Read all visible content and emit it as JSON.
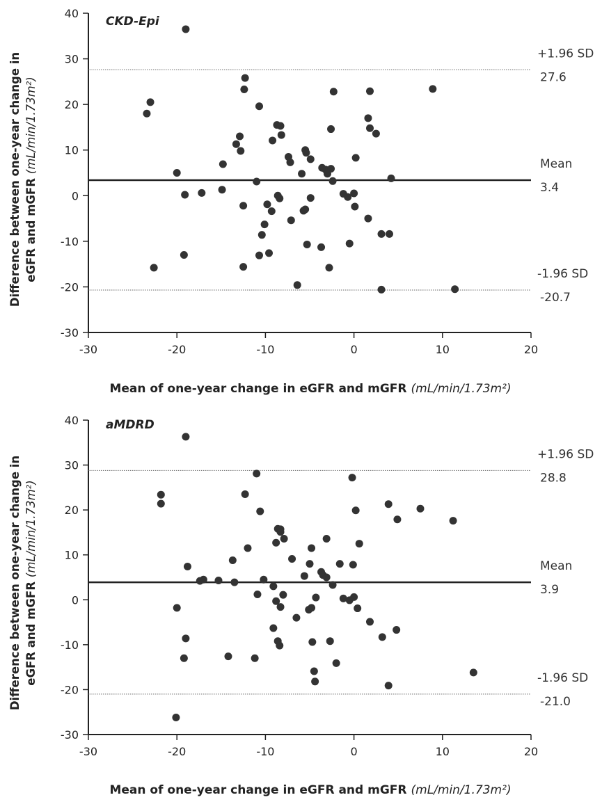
{
  "chart_data": [
    {
      "type": "scatter",
      "panel_label": "CKD-Epi",
      "xlabel": "Mean of one-year change in eGFR and mGFR",
      "xlabel_unit": "(mL/min/1.73m²)",
      "ylabel_line1": "Difference between one-year change in",
      "ylabel_line2": "eGFR and mGFR",
      "ylabel_unit": "(mL/min/1.73m²)",
      "xlim": [
        -30,
        20
      ],
      "ylim": [
        -30,
        40
      ],
      "xticks": [
        "-30",
        "-20",
        "-10",
        "0",
        "10",
        "20"
      ],
      "yticks": [
        "-30",
        "-20",
        "-10",
        "0",
        "10",
        "20",
        "30",
        "40"
      ],
      "grid": false,
      "reference_lines": [
        {
          "name": "+1.96 SD",
          "value": 27.6,
          "label": "+1.96 SD",
          "value_label": "27.6",
          "style": "dotted"
        },
        {
          "name": "Mean",
          "value": 3.4,
          "label": "Mean",
          "value_label": "3.4",
          "style": "solid"
        },
        {
          "name": "-1.96 SD",
          "value": -20.7,
          "label": "-1.96 SD",
          "value_label": "-20.7",
          "style": "dotted"
        }
      ],
      "points": [
        [
          -19,
          36.5
        ],
        [
          -12.3,
          25.8
        ],
        [
          -12.4,
          23.3
        ],
        [
          -23,
          20.5
        ],
        [
          -23.4,
          18
        ],
        [
          -10.7,
          19.6
        ],
        [
          -8.7,
          15.5
        ],
        [
          -8.3,
          15.3
        ],
        [
          -8.2,
          13.3
        ],
        [
          -13.3,
          11.3
        ],
        [
          -12.9,
          13
        ],
        [
          -12.8,
          9.8
        ],
        [
          -9.2,
          12.1
        ],
        [
          -5.5,
          10
        ],
        [
          -5.4,
          9.4
        ],
        [
          -4.9,
          8
        ],
        [
          -7.4,
          8.5
        ],
        [
          -7.2,
          7.3
        ],
        [
          -2.6,
          14.6
        ],
        [
          -2.3,
          22.8
        ],
        [
          1.6,
          17
        ],
        [
          1.8,
          14.8
        ],
        [
          2.5,
          13.6
        ],
        [
          1.8,
          22.9
        ],
        [
          8.9,
          23.4
        ],
        [
          -14.8,
          6.9
        ],
        [
          -3.6,
          6.1
        ],
        [
          -3.2,
          5.7
        ],
        [
          -2.6,
          5.9
        ],
        [
          -3,
          4.8
        ],
        [
          -5.9,
          4.8
        ],
        [
          0.2,
          8.3
        ],
        [
          -2.4,
          3.2
        ],
        [
          4.2,
          3.8
        ],
        [
          -20,
          5
        ],
        [
          -11,
          3.1
        ],
        [
          -14.9,
          1.3
        ],
        [
          -17.2,
          0.6
        ],
        [
          -19.1,
          0.2
        ],
        [
          -8.6,
          0
        ],
        [
          -8.4,
          -0.6
        ],
        [
          -4.9,
          -0.5
        ],
        [
          -1.2,
          0.4
        ],
        [
          -0.7,
          -0.3
        ],
        [
          0,
          0.5
        ],
        [
          0.1,
          -2.4
        ],
        [
          -12.5,
          -2.2
        ],
        [
          -9.8,
          -1.9
        ],
        [
          -5.7,
          -3.3
        ],
        [
          -5.5,
          -3
        ],
        [
          -9.3,
          -3.4
        ],
        [
          -7.1,
          -5.4
        ],
        [
          -10.1,
          -6.3
        ],
        [
          1.6,
          -5
        ],
        [
          -10.4,
          -8.6
        ],
        [
          -9.6,
          -12.6
        ],
        [
          -10.7,
          -13.1
        ],
        [
          -5.3,
          -10.7
        ],
        [
          -3.7,
          -11.3
        ],
        [
          -0.5,
          -10.5
        ],
        [
          3.1,
          -8.4
        ],
        [
          4,
          -8.4
        ],
        [
          -19.2,
          -13
        ],
        [
          -22.6,
          -15.8
        ],
        [
          -12.5,
          -15.6
        ],
        [
          -2.8,
          -15.8
        ],
        [
          -6.4,
          -19.6
        ],
        [
          3.1,
          -20.6
        ],
        [
          11.4,
          -20.5
        ]
      ]
    },
    {
      "type": "scatter",
      "panel_label": "aMDRD",
      "xlabel": "Mean of one-year change in eGFR and mGFR",
      "xlabel_unit": "(mL/min/1.73m²)",
      "ylabel_line1": "Difference between one-year change in",
      "ylabel_line2": "eGFR and mGFR",
      "ylabel_unit": "(mL/min/1.73m²)",
      "xlim": [
        -30,
        20
      ],
      "ylim": [
        -30,
        40
      ],
      "xticks": [
        "-30",
        "-20",
        "-10",
        "0",
        "10",
        "20"
      ],
      "yticks": [
        "-30",
        "-20",
        "-10",
        "0",
        "10",
        "20",
        "30",
        "40"
      ],
      "grid": false,
      "reference_lines": [
        {
          "name": "+1.96 SD",
          "value": 28.8,
          "label": "+1.96 SD",
          "value_label": "28.8",
          "style": "dotted"
        },
        {
          "name": "Mean",
          "value": 3.9,
          "label": "Mean",
          "value_label": "3.9",
          "style": "solid"
        },
        {
          "name": "-1.96 SD",
          "value": -21.0,
          "label": "-1.96 SD",
          "value_label": "-21.0",
          "style": "dotted"
        }
      ],
      "points": [
        [
          -19,
          36.3
        ],
        [
          -11,
          28.1
        ],
        [
          -0.2,
          27.2
        ],
        [
          -21.8,
          23.4
        ],
        [
          -21.8,
          21.4
        ],
        [
          -12.3,
          23.5
        ],
        [
          -10.6,
          19.7
        ],
        [
          0.2,
          19.9
        ],
        [
          3.9,
          21.3
        ],
        [
          7.5,
          20.3
        ],
        [
          4.9,
          17.9
        ],
        [
          11.2,
          17.6
        ],
        [
          -8.6,
          15.8
        ],
        [
          -8.3,
          15.7
        ],
        [
          -8.3,
          15.1
        ],
        [
          -7.9,
          13.6
        ],
        [
          -8.8,
          12.7
        ],
        [
          -4.8,
          11.5
        ],
        [
          -3.1,
          13.6
        ],
        [
          0.6,
          12.5
        ],
        [
          -12,
          11.5
        ],
        [
          -13.7,
          8.8
        ],
        [
          -7,
          9.1
        ],
        [
          -18.8,
          7.4
        ],
        [
          -5,
          8
        ],
        [
          -1.6,
          8
        ],
        [
          -0.1,
          7.8
        ],
        [
          -3.7,
          6.2
        ],
        [
          -3.5,
          5.5
        ],
        [
          -5.6,
          5.3
        ],
        [
          -3.1,
          5
        ],
        [
          -17,
          4.5
        ],
        [
          -17.4,
          4.2
        ],
        [
          -15.3,
          4.3
        ],
        [
          -13.5,
          3.9
        ],
        [
          -10.2,
          4.5
        ],
        [
          -9.1,
          3
        ],
        [
          -2.4,
          3.3
        ],
        [
          -10.9,
          1.2
        ],
        [
          -8,
          1.1
        ],
        [
          -4.3,
          0.5
        ],
        [
          -1.2,
          0.3
        ],
        [
          -0.5,
          -0.1
        ],
        [
          0,
          0.6
        ],
        [
          -8.8,
          -0.3
        ],
        [
          -8.3,
          -1.6
        ],
        [
          -5.1,
          -2.2
        ],
        [
          -4.8,
          -1.8
        ],
        [
          0.4,
          -1.9
        ],
        [
          -20,
          -1.8
        ],
        [
          -6.5,
          -4
        ],
        [
          1.8,
          -4.9
        ],
        [
          -9.1,
          -6.3
        ],
        [
          3.2,
          -8.3
        ],
        [
          4.8,
          -6.7
        ],
        [
          -19,
          -8.6
        ],
        [
          -8.6,
          -9.2
        ],
        [
          -8.4,
          -10.2
        ],
        [
          -4.7,
          -9.4
        ],
        [
          -2.7,
          -9.2
        ],
        [
          -19.2,
          -13
        ],
        [
          -14.2,
          -12.6
        ],
        [
          -11.2,
          -13
        ],
        [
          -2,
          -14.1
        ],
        [
          -4.5,
          -15.9
        ],
        [
          -4.4,
          -18.2
        ],
        [
          3.9,
          -19.1
        ],
        [
          13.5,
          -16.2
        ],
        [
          -20.1,
          -26.2
        ]
      ]
    }
  ]
}
